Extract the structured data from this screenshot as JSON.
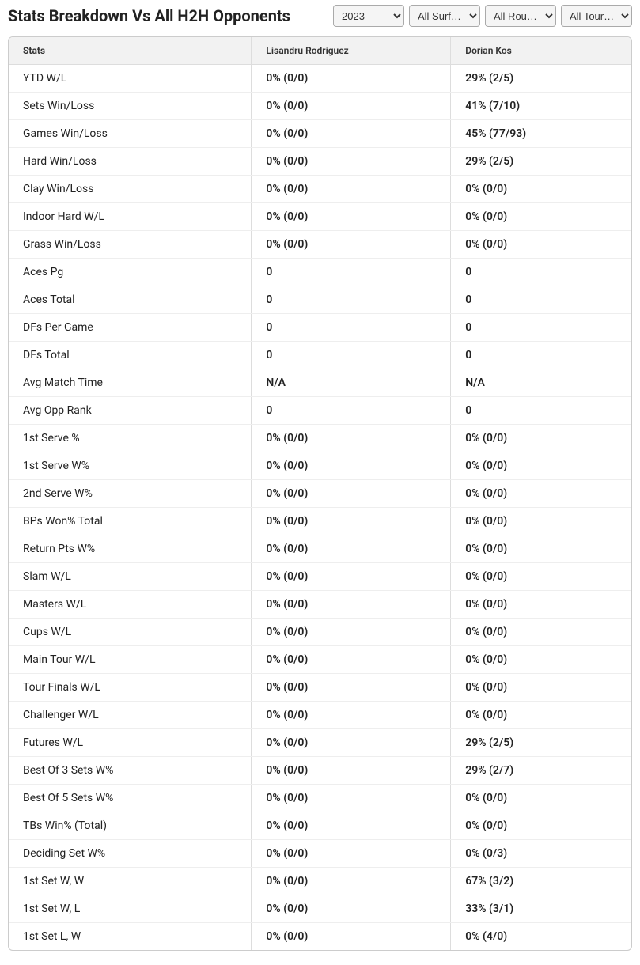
{
  "title": "Stats Breakdown Vs All H2H Opponents",
  "filters": {
    "year": {
      "selected": "2023",
      "options": [
        "2023"
      ]
    },
    "surface": {
      "selected": "All Surf…",
      "options": [
        "All Surf…"
      ]
    },
    "round": {
      "selected": "All Rou…",
      "options": [
        "All Rou…"
      ]
    },
    "tour": {
      "selected": "All Tour…",
      "options": [
        "All Tour…"
      ]
    }
  },
  "columns": {
    "stat": "Stats",
    "p1": "Lisandru Rodriguez",
    "p2": "Dorian Kos"
  },
  "rows": [
    {
      "stat": "YTD W/L",
      "p1": "0% (0/0)",
      "p2": "29% (2/5)"
    },
    {
      "stat": "Sets Win/Loss",
      "p1": "0% (0/0)",
      "p2": "41% (7/10)"
    },
    {
      "stat": "Games Win/Loss",
      "p1": "0% (0/0)",
      "p2": "45% (77/93)"
    },
    {
      "stat": "Hard Win/Loss",
      "p1": "0% (0/0)",
      "p2": "29% (2/5)"
    },
    {
      "stat": "Clay Win/Loss",
      "p1": "0% (0/0)",
      "p2": "0% (0/0)"
    },
    {
      "stat": "Indoor Hard W/L",
      "p1": "0% (0/0)",
      "p2": "0% (0/0)"
    },
    {
      "stat": "Grass Win/Loss",
      "p1": "0% (0/0)",
      "p2": "0% (0/0)"
    },
    {
      "stat": "Aces Pg",
      "p1": "0",
      "p2": "0"
    },
    {
      "stat": "Aces Total",
      "p1": "0",
      "p2": "0"
    },
    {
      "stat": "DFs Per Game",
      "p1": "0",
      "p2": "0"
    },
    {
      "stat": "DFs Total",
      "p1": "0",
      "p2": "0"
    },
    {
      "stat": "Avg Match Time",
      "p1": "N/A",
      "p2": "N/A"
    },
    {
      "stat": "Avg Opp Rank",
      "p1": "0",
      "p2": "0"
    },
    {
      "stat": "1st Serve %",
      "p1": "0% (0/0)",
      "p2": "0% (0/0)"
    },
    {
      "stat": "1st Serve W%",
      "p1": "0% (0/0)",
      "p2": "0% (0/0)"
    },
    {
      "stat": "2nd Serve W%",
      "p1": "0% (0/0)",
      "p2": "0% (0/0)"
    },
    {
      "stat": "BPs Won% Total",
      "p1": "0% (0/0)",
      "p2": "0% (0/0)"
    },
    {
      "stat": "Return Pts W%",
      "p1": "0% (0/0)",
      "p2": "0% (0/0)"
    },
    {
      "stat": "Slam W/L",
      "p1": "0% (0/0)",
      "p2": "0% (0/0)"
    },
    {
      "stat": "Masters W/L",
      "p1": "0% (0/0)",
      "p2": "0% (0/0)"
    },
    {
      "stat": "Cups W/L",
      "p1": "0% (0/0)",
      "p2": "0% (0/0)"
    },
    {
      "stat": "Main Tour W/L",
      "p1": "0% (0/0)",
      "p2": "0% (0/0)"
    },
    {
      "stat": "Tour Finals W/L",
      "p1": "0% (0/0)",
      "p2": "0% (0/0)"
    },
    {
      "stat": "Challenger W/L",
      "p1": "0% (0/0)",
      "p2": "0% (0/0)"
    },
    {
      "stat": "Futures W/L",
      "p1": "0% (0/0)",
      "p2": "29% (2/5)"
    },
    {
      "stat": "Best Of 3 Sets W%",
      "p1": "0% (0/0)",
      "p2": "29% (2/7)"
    },
    {
      "stat": "Best Of 5 Sets W%",
      "p1": "0% (0/0)",
      "p2": "0% (0/0)"
    },
    {
      "stat": "TBs Win% (Total)",
      "p1": "0% (0/0)",
      "p2": "0% (0/0)"
    },
    {
      "stat": "Deciding Set W%",
      "p1": "0% (0/0)",
      "p2": "0% (0/3)"
    },
    {
      "stat": "1st Set W, W",
      "p1": "0% (0/0)",
      "p2": "67% (3/2)"
    },
    {
      "stat": "1st Set W, L",
      "p1": "0% (0/0)",
      "p2": "33% (3/1)"
    },
    {
      "stat": "1st Set L, W",
      "p1": "0% (0/0)",
      "p2": "0% (4/0)"
    }
  ],
  "style": {
    "header_bg": "#f2f2f2",
    "border_color": "#ddd",
    "row_border": "#eee",
    "text_color": "#222",
    "title_fontsize": 20,
    "cell_fontsize": 14,
    "header_fontsize": 12
  }
}
